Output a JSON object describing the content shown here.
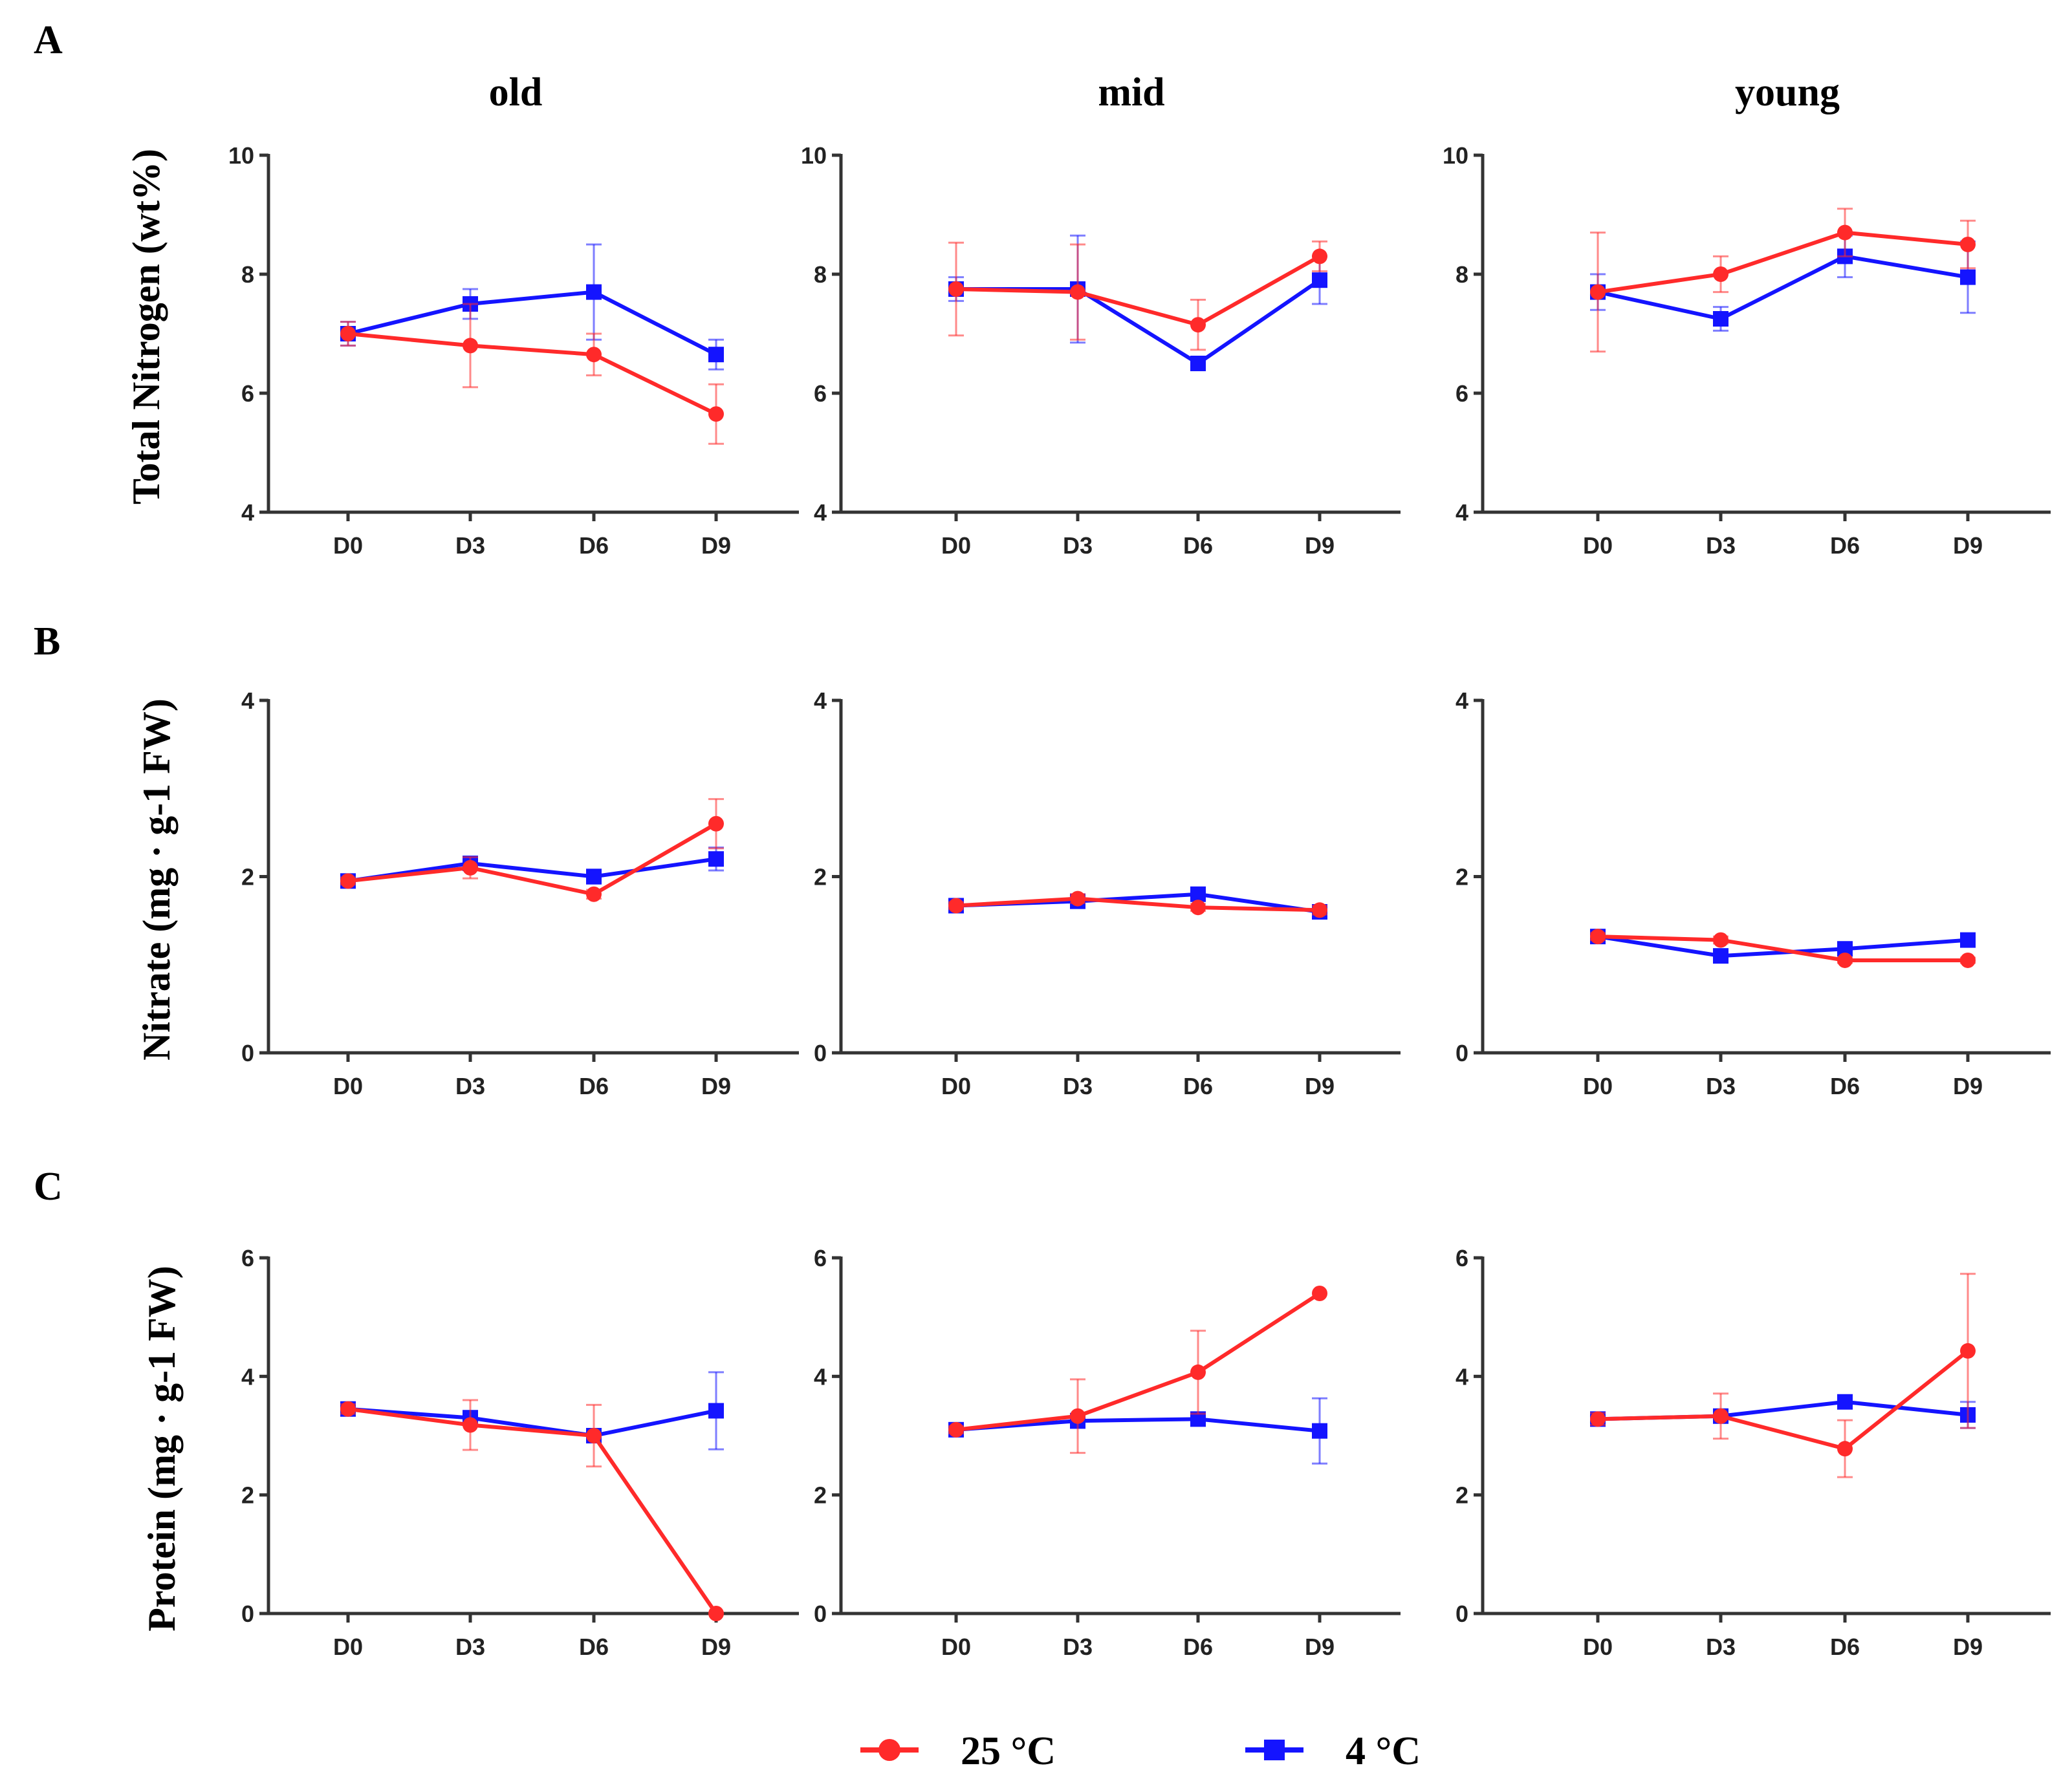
{
  "columns": [
    "old",
    "mid",
    "young"
  ],
  "legend": [
    {
      "label": "25 °C",
      "color": "#ff2a2a",
      "marker": "circle"
    },
    {
      "label": "4 °C",
      "color": "#1414ff",
      "marker": "square"
    }
  ],
  "colors": {
    "warm": "#ff2a2a",
    "cold": "#1414ff",
    "axis": "#333333"
  },
  "chart_data": [
    {
      "panel": "A",
      "type": "line",
      "ylabel": "Total Nitrogen (wt%)",
      "categories": [
        "D0",
        "D3",
        "D6",
        "D9"
      ],
      "ylim": [
        4,
        10
      ],
      "yticks": [
        4,
        6,
        8,
        10
      ],
      "charts": [
        {
          "title": "old",
          "series": [
            {
              "name": "25 °C",
              "values": [
                7.0,
                6.8,
                6.65,
                5.65
              ],
              "errors": [
                0.2,
                0.7,
                0.35,
                0.5
              ]
            },
            {
              "name": "4 °C",
              "values": [
                7.0,
                7.5,
                7.7,
                6.65
              ],
              "errors": [
                0.2,
                0.25,
                0.8,
                0.25
              ]
            }
          ]
        },
        {
          "title": "mid",
          "series": [
            {
              "name": "25 °C",
              "values": [
                7.75,
                7.7,
                7.15,
                8.3
              ],
              "errors": [
                0.78,
                0.8,
                0.42,
                0.25
              ]
            },
            {
              "name": "4 °C",
              "values": [
                7.75,
                7.75,
                6.5,
                7.9
              ],
              "errors": [
                0.2,
                0.9,
                0.1,
                0.4
              ]
            }
          ]
        },
        {
          "title": "young",
          "series": [
            {
              "name": "25 °C",
              "values": [
                7.7,
                8.0,
                8.7,
                8.5
              ],
              "errors": [
                1.0,
                0.3,
                0.4,
                0.4
              ]
            },
            {
              "name": "4 °C",
              "values": [
                7.7,
                7.25,
                8.3,
                7.95
              ],
              "errors": [
                0.3,
                0.2,
                0.35,
                0.6
              ]
            }
          ]
        }
      ]
    },
    {
      "panel": "B",
      "type": "line",
      "ylabel": "Nitrate (mg · g-1 FW)",
      "categories": [
        "D0",
        "D3",
        "D6",
        "D9"
      ],
      "ylim": [
        0,
        4
      ],
      "yticks": [
        0,
        2,
        4
      ],
      "charts": [
        {
          "title": "old",
          "series": [
            {
              "name": "25 °C",
              "values": [
                1.95,
                2.1,
                1.8,
                2.6
              ],
              "errors": [
                0.04,
                0.12,
                0.05,
                0.28
              ]
            },
            {
              "name": "4 °C",
              "values": [
                1.95,
                2.15,
                2.0,
                2.2
              ],
              "errors": [
                0.04,
                0.06,
                0.08,
                0.13
              ]
            }
          ]
        },
        {
          "title": "mid",
          "series": [
            {
              "name": "25 °C",
              "values": [
                1.67,
                1.75,
                1.65,
                1.62
              ],
              "errors": [
                0.04,
                0.05,
                0.04,
                0.05
              ]
            },
            {
              "name": "4 °C",
              "values": [
                1.67,
                1.72,
                1.8,
                1.6
              ],
              "errors": [
                0.04,
                0.04,
                0.05,
                0.07
              ]
            }
          ]
        },
        {
          "title": "young",
          "series": [
            {
              "name": "25 °C",
              "values": [
                1.32,
                1.28,
                1.05,
                1.05
              ],
              "errors": [
                0.04,
                0.04,
                0.03,
                0.03
              ]
            },
            {
              "name": "4 °C",
              "values": [
                1.32,
                1.1,
                1.18,
                1.28
              ],
              "errors": [
                0.04,
                0.05,
                0.04,
                0.04
              ]
            }
          ]
        }
      ]
    },
    {
      "panel": "C",
      "type": "line",
      "ylabel": "Protein (mg · g-1 FW)",
      "categories": [
        "D0",
        "D3",
        "D6",
        "D9"
      ],
      "ylim": [
        0,
        6
      ],
      "yticks": [
        0,
        2,
        4,
        6
      ],
      "charts": [
        {
          "title": "old",
          "series": [
            {
              "name": "25 °C",
              "values": [
                3.45,
                3.18,
                3.0,
                0.0
              ],
              "errors": [
                0.08,
                0.42,
                0.52,
                0.0
              ]
            },
            {
              "name": "4 °C",
              "values": [
                3.45,
                3.3,
                3.0,
                3.42
              ],
              "errors": [
                0.08,
                0.12,
                0.1,
                0.65
              ]
            }
          ]
        },
        {
          "title": "mid",
          "series": [
            {
              "name": "25 °C",
              "values": [
                3.1,
                3.33,
                4.07,
                5.4
              ],
              "errors": [
                0.06,
                0.62,
                0.7,
                0.0
              ]
            },
            {
              "name": "4 °C",
              "values": [
                3.1,
                3.25,
                3.28,
                3.08
              ],
              "errors": [
                0.06,
                0.12,
                0.08,
                0.55
              ]
            }
          ]
        },
        {
          "title": "young",
          "series": [
            {
              "name": "25 °C",
              "values": [
                3.28,
                3.33,
                2.78,
                4.43
              ],
              "errors": [
                0.1,
                0.38,
                0.48,
                1.3
              ]
            },
            {
              "name": "4 °C",
              "values": [
                3.28,
                3.33,
                3.57,
                3.35
              ],
              "errors": [
                0.1,
                0.1,
                0.06,
                0.22
              ]
            }
          ]
        }
      ]
    }
  ]
}
